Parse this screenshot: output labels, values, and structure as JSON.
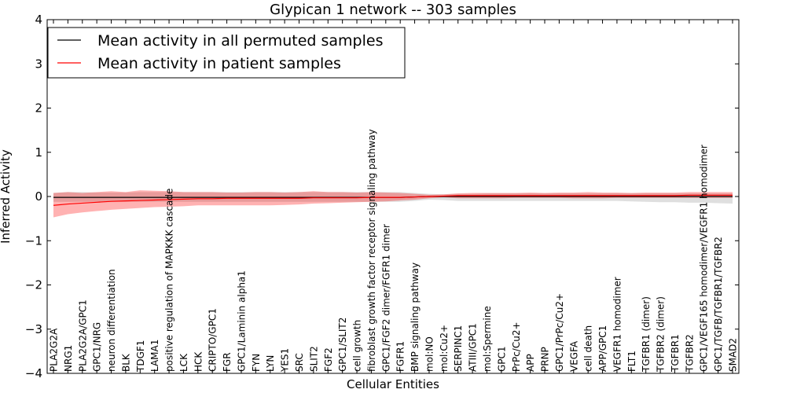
{
  "chart_data": {
    "type": "line",
    "title": "Glypican 1 network -- 303 samples",
    "xlabel": "Cellular Entities",
    "ylabel": "Inferred Activity",
    "ylim": [
      -4,
      4
    ],
    "yticks": [
      -4,
      -3,
      -2,
      -1,
      0,
      1,
      2,
      3,
      4
    ],
    "ytick_labels": [
      "−4",
      "−3",
      "−2",
      "−1",
      "0",
      "1",
      "2",
      "3",
      "4"
    ],
    "legend_position": "top-left",
    "categories": [
      "PLA2G2A",
      "NRG1",
      "PLA2G2A/GPC1",
      "GPC1/NRG",
      "neuron differentiation",
      "BLK",
      "TDGF1",
      "LAMA1",
      "positive regulation of MAPKKK cascade",
      "LCK",
      "HCK",
      "CRIPTO/GPC1",
      "FGR",
      "GPC1/Laminin alpha1",
      "FYN",
      "LYN",
      "YES1",
      "SRC",
      "SLIT2",
      "FGF2",
      "GPC1/SLIT2",
      "cell growth",
      "fibroblast growth factor receptor signaling pathway",
      "GPC1/FGF2 dimer/FGFR1 dimer",
      "FGFR1",
      "BMP signaling pathway",
      "mol:NO",
      "mol:Cu2+",
      "SERPINC1",
      "ATIII/GPC1",
      "mol:Spermine",
      "GPC1",
      "PrPc/Cu2+",
      "APP",
      "PRNP",
      "GPC1/PrPc/Cu2+",
      "VEGFA",
      "cell death",
      "APP/GPC1",
      "VEGFR1 homodimer",
      "FLT1",
      "TGFBR1 (dimer)",
      "TGFBR2 (dimer)",
      "TGFBR1",
      "TGFBR2",
      "GPC1/VEGF165 homodimer/VEGFR1 homodimer",
      "GPC1/TGFB/TGFBR1/TGFBR2",
      "SMAD2"
    ],
    "series": [
      {
        "name": "Mean activity in all permuted samples",
        "color": "#000000",
        "values": [
          -0.02,
          -0.02,
          -0.02,
          -0.02,
          -0.02,
          -0.02,
          -0.02,
          -0.02,
          -0.02,
          -0.02,
          -0.02,
          -0.02,
          -0.02,
          -0.02,
          -0.02,
          -0.02,
          -0.02,
          -0.02,
          -0.02,
          -0.02,
          -0.02,
          -0.02,
          -0.02,
          -0.02,
          -0.02,
          -0.01,
          0.0,
          0.0,
          0.0,
          0.0,
          0.0,
          0.0,
          0.0,
          0.0,
          0.0,
          0.0,
          0.0,
          0.0,
          0.0,
          0.0,
          0.0,
          0.0,
          0.0,
          0.0,
          0.0,
          0.0,
          0.0,
          0.0
        ],
        "band_upper": [
          0.08,
          0.1,
          0.1,
          0.09,
          0.09,
          0.09,
          0.1,
          0.1,
          0.1,
          0.1,
          0.1,
          0.1,
          0.1,
          0.1,
          0.1,
          0.1,
          0.1,
          0.1,
          0.1,
          0.1,
          0.1,
          0.1,
          0.1,
          0.1,
          0.1,
          0.08,
          0.06,
          0.05,
          0.06,
          0.06,
          0.07,
          0.07,
          0.07,
          0.07,
          0.07,
          0.07,
          0.07,
          0.07,
          0.07,
          0.07,
          0.07,
          0.07,
          0.07,
          0.07,
          0.07,
          0.07,
          0.07,
          0.07
        ],
        "band_lower": [
          -0.12,
          -0.12,
          -0.12,
          -0.12,
          -0.12,
          -0.12,
          -0.12,
          -0.12,
          -0.12,
          -0.12,
          -0.12,
          -0.12,
          -0.12,
          -0.12,
          -0.12,
          -0.12,
          -0.12,
          -0.12,
          -0.12,
          -0.12,
          -0.12,
          -0.12,
          -0.12,
          -0.12,
          -0.12,
          -0.1,
          -0.07,
          -0.08,
          -0.1,
          -0.1,
          -0.1,
          -0.1,
          -0.1,
          -0.1,
          -0.1,
          -0.1,
          -0.1,
          -0.1,
          -0.1,
          -0.1,
          -0.11,
          -0.12,
          -0.13,
          -0.13,
          -0.14,
          -0.14,
          -0.15,
          -0.16
        ]
      },
      {
        "name": "Mean activity in patient samples",
        "color": "#ff0000",
        "values": [
          -0.2,
          -0.17,
          -0.15,
          -0.13,
          -0.11,
          -0.1,
          -0.09,
          -0.08,
          -0.07,
          -0.06,
          -0.05,
          -0.05,
          -0.04,
          -0.04,
          -0.04,
          -0.04,
          -0.04,
          -0.04,
          -0.03,
          -0.03,
          -0.03,
          -0.03,
          -0.02,
          -0.02,
          -0.02,
          -0.01,
          0.0,
          0.01,
          0.02,
          0.02,
          0.02,
          0.02,
          0.02,
          0.02,
          0.02,
          0.02,
          0.02,
          0.02,
          0.02,
          0.02,
          0.02,
          0.02,
          0.02,
          0.02,
          0.03,
          0.03,
          0.03,
          0.03
        ],
        "band_upper": [
          0.08,
          0.1,
          0.08,
          0.1,
          0.12,
          0.1,
          0.14,
          0.13,
          0.12,
          0.1,
          0.1,
          0.1,
          0.09,
          0.09,
          0.1,
          0.1,
          0.09,
          0.1,
          0.12,
          0.1,
          0.1,
          0.09,
          0.1,
          0.09,
          0.08,
          0.06,
          0.04,
          0.05,
          0.07,
          0.08,
          0.08,
          0.08,
          0.08,
          0.09,
          0.08,
          0.09,
          0.09,
          0.1,
          0.09,
          0.09,
          0.08,
          0.09,
          0.09,
          0.09,
          0.1,
          0.1,
          0.1,
          0.1
        ],
        "band_lower": [
          -0.47,
          -0.4,
          -0.36,
          -0.33,
          -0.3,
          -0.28,
          -0.26,
          -0.24,
          -0.23,
          -0.22,
          -0.2,
          -0.2,
          -0.2,
          -0.2,
          -0.2,
          -0.2,
          -0.19,
          -0.18,
          -0.16,
          -0.15,
          -0.14,
          -0.13,
          -0.12,
          -0.11,
          -0.09,
          -0.07,
          -0.04,
          -0.02,
          -0.04,
          -0.04,
          -0.04,
          -0.04,
          -0.03,
          -0.03,
          -0.03,
          -0.03,
          -0.04,
          -0.04,
          -0.04,
          -0.03,
          -0.03,
          -0.03,
          -0.03,
          -0.03,
          -0.03,
          -0.03,
          -0.03,
          -0.03
        ]
      }
    ]
  }
}
